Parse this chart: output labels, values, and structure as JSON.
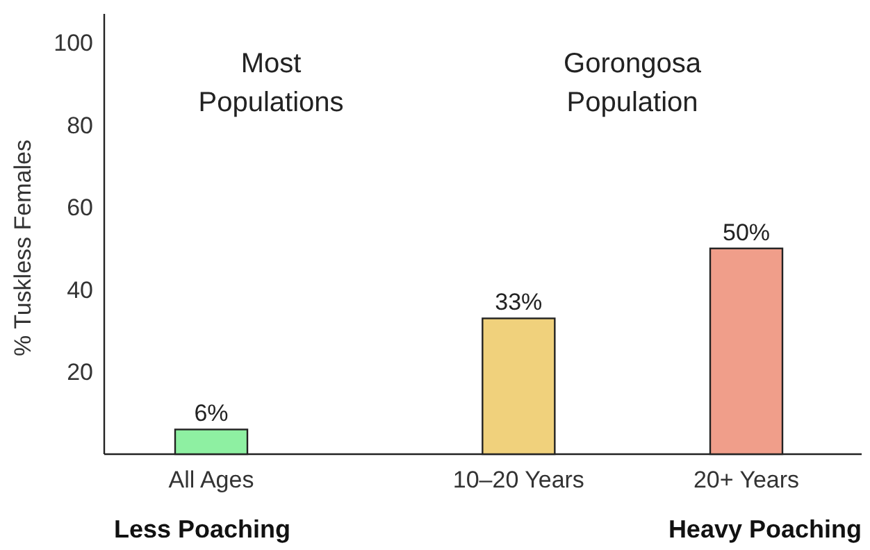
{
  "chart_data": {
    "type": "bar",
    "ylabel": "% Tuskless Females",
    "categories": [
      "All Ages",
      "10–20 Years",
      "20+ Years"
    ],
    "values": [
      6,
      33,
      50
    ],
    "value_labels": [
      "6%",
      "33%",
      "50%"
    ],
    "colors": [
      "#8ef0a2",
      "#f0d17c",
      "#f09e8a"
    ],
    "ylim": [
      0,
      107
    ],
    "yticks": [
      20,
      40,
      60,
      80,
      100
    ],
    "grid": false,
    "annotations": [
      "Most Populations",
      "Gorongosa Population",
      "Less Poaching",
      "Heavy Poaching"
    ]
  }
}
